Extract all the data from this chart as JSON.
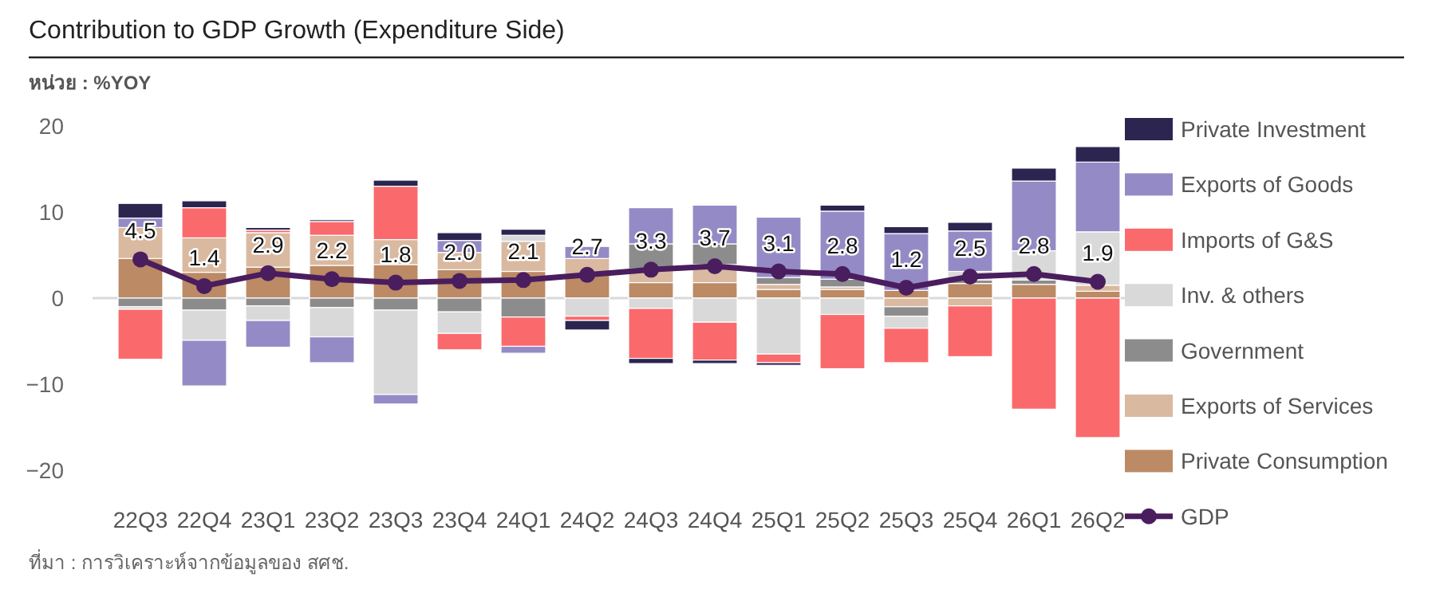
{
  "chart_data": {
    "type": "bar",
    "title": "Contribution to GDP Growth (Expenditure Side)",
    "ylabel": "หน่วย : %YOY",
    "annotations": [
      "ที่มา : การวิเคราะห์จากข้อมูลของ สศช."
    ],
    "stacked": true,
    "legend": "right",
    "ylim": [
      -20,
      20
    ],
    "yticks": [
      -20,
      -10,
      0,
      10,
      20
    ],
    "categories": [
      "22Q3",
      "22Q4",
      "23Q1",
      "23Q2",
      "23Q3",
      "23Q4",
      "24Q1",
      "24Q2",
      "24Q3",
      "24Q4",
      "25Q1",
      "25Q2",
      "25Q3",
      "25Q4",
      "26Q1",
      "26Q2"
    ],
    "series": [
      {
        "name": "Private Consumption",
        "color": "#bc8a64",
        "values": [
          4.6,
          3.0,
          3.6,
          3.8,
          3.9,
          3.3,
          3.1,
          2.7,
          1.8,
          1.8,
          1.0,
          1.0,
          0.9,
          1.7,
          1.6,
          0.8
        ]
      },
      {
        "name": "Exports of Services",
        "color": "#d9b9a0",
        "values": [
          3.6,
          4.0,
          4.0,
          3.5,
          2.9,
          2.0,
          3.5,
          1.9,
          1.6,
          2.1,
          0.6,
          0.3,
          -1.0,
          -0.9,
          null,
          0.7
        ]
      },
      {
        "name": "Government",
        "color": "#8c8c8c",
        "values": [
          -1.0,
          -1.4,
          -0.9,
          -1.1,
          -1.4,
          -1.6,
          -2.2,
          null,
          2.9,
          2.4,
          0.8,
          0.9,
          -1.1,
          0.4,
          0.5,
          null
        ]
      },
      {
        "name": "Inv. & others",
        "color": "#d9d9d9",
        "values": [
          -0.3,
          -3.5,
          -1.7,
          -3.4,
          -9.8,
          -2.5,
          0.7,
          -2.1,
          -1.2,
          -2.8,
          -6.5,
          -1.9,
          -1.4,
          1.0,
          3.4,
          6.2
        ]
      },
      {
        "name": "Imports of G&S",
        "color": "#fa6a6c",
        "values": [
          -5.8,
          3.5,
          0.3,
          1.6,
          6.2,
          -1.9,
          -3.4,
          -0.5,
          -5.8,
          -4.4,
          -1.0,
          -6.3,
          -4.0,
          -5.9,
          -12.9,
          -16.2
        ]
      },
      {
        "name": "Exports of Goods",
        "color": "#948bc6",
        "values": [
          1.1,
          -5.3,
          -3.1,
          -3.0,
          -1.1,
          1.4,
          -0.8,
          1.4,
          4.2,
          4.5,
          7.0,
          7.9,
          6.6,
          4.7,
          8.1,
          8.1
        ]
      },
      {
        "name": "Private Investment",
        "color": "#2b2550",
        "values": [
          1.7,
          0.8,
          0.3,
          0.2,
          0.7,
          0.9,
          0.7,
          -1.1,
          -0.6,
          -0.4,
          -0.3,
          0.7,
          0.8,
          1.0,
          1.5,
          1.8
        ]
      },
      {
        "name": "GDP",
        "type": "line",
        "color": "#4a1d5e",
        "marker": "circle",
        "values": [
          4.5,
          1.4,
          2.9,
          2.2,
          1.8,
          2.0,
          2.1,
          2.7,
          3.3,
          3.7,
          3.1,
          2.8,
          1.2,
          2.5,
          2.8,
          1.9
        ],
        "value_labels": [
          "4.5",
          "1.4",
          "2.9",
          "2.2",
          "1.8",
          "2.0",
          "2.1",
          "2.7",
          "3.3",
          "3.7",
          "3.1",
          "2.8",
          "1.2",
          "2.5",
          "2.8",
          "1.9"
        ]
      }
    ]
  }
}
